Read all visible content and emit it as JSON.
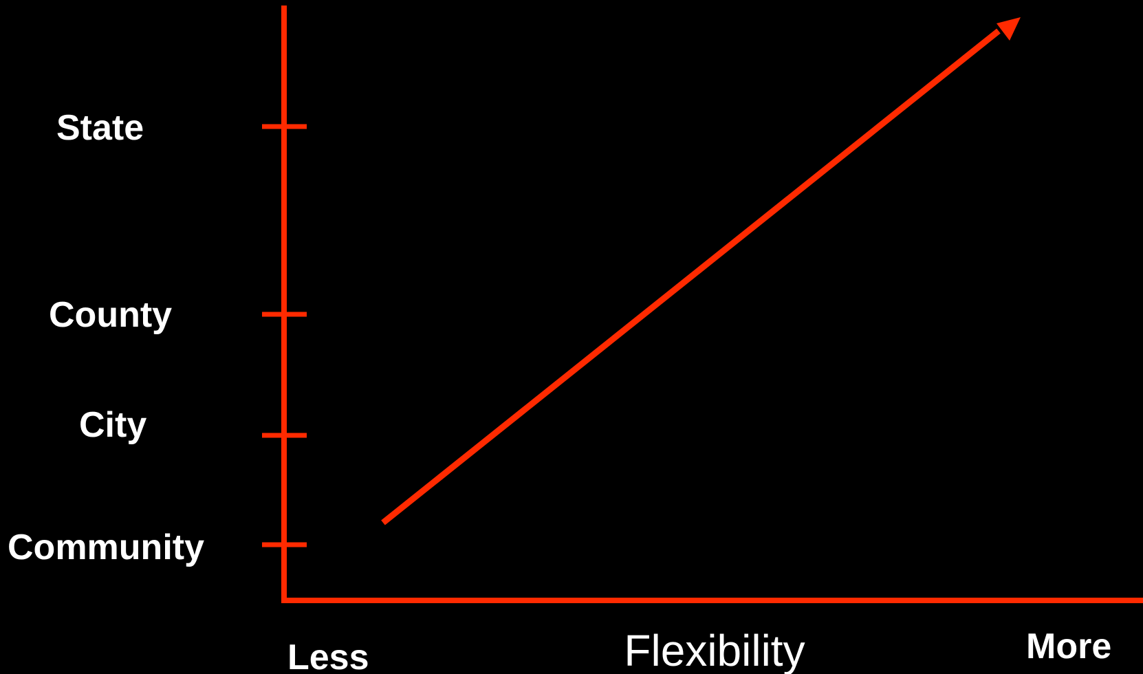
{
  "colors": {
    "background": "#000000",
    "axis": "#ff2a00",
    "text": "#ffffff"
  },
  "y_axis": {
    "levels": [
      "State",
      "County",
      "City",
      "Community"
    ]
  },
  "x_axis": {
    "title": "Flexibility",
    "start_label": "Less",
    "end_label": "More"
  },
  "trend": {
    "direction": "increasing",
    "from": {
      "flexibility": "Less",
      "level": "Community"
    },
    "to": {
      "flexibility": "More",
      "level": "State"
    }
  }
}
